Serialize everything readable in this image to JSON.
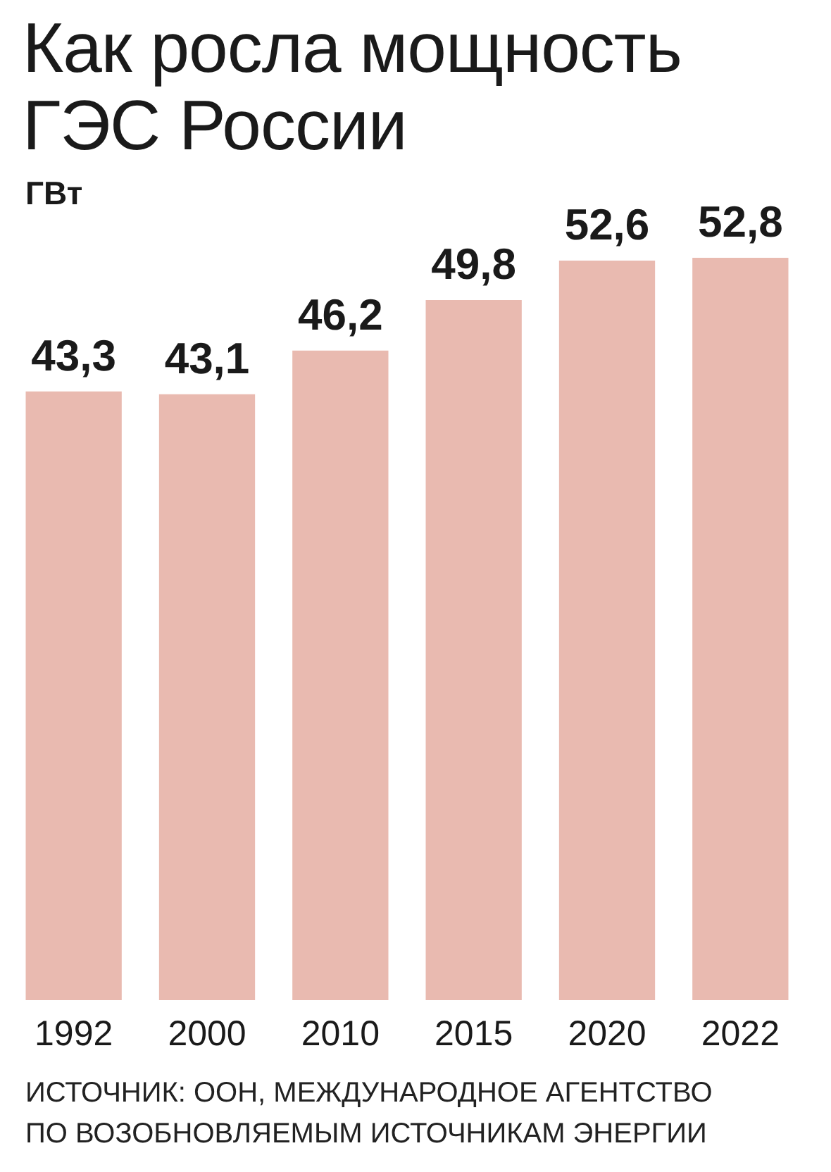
{
  "chart_data": {
    "type": "bar",
    "title": "Как росла мощность ГЭС России",
    "ylabel": "ГВт",
    "categories": [
      "1992",
      "2000",
      "2010",
      "2015",
      "2020",
      "2022"
    ],
    "values": [
      43.3,
      43.1,
      46.2,
      49.8,
      52.6,
      52.8
    ],
    "value_labels": [
      "43,3",
      "43,1",
      "46,2",
      "49,8",
      "52,6",
      "52,8"
    ],
    "color": "#e9bab0",
    "annotations": [
      "ИСТОЧНИК: ООН, МЕЖДУНАРОДНОЕ АГЕНТСТВО ПО ВОЗОБНОВЛЯЕМЫМ ИСТОЧНИКАМ ЭНЕРГИИ"
    ]
  }
}
